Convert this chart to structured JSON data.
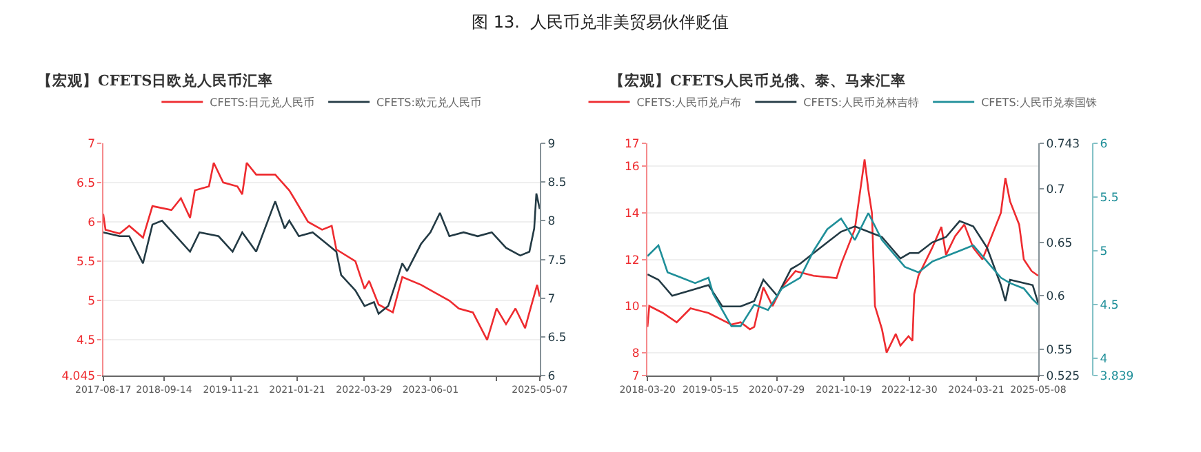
{
  "chart_data": [
    {
      "type": "line",
      "title": "【宏观】CFETS日欧兑人民币汇率",
      "annotations": [
        "图 13.  人民币兑非美贸易伙伴贬值"
      ],
      "legend": "top",
      "grid": "y",
      "xlim": [
        "2017-08-17",
        "2025-05-07"
      ],
      "xticks": [
        {
          "value": "2017-08-17",
          "label": "2017-08-17"
        },
        {
          "value": "2018-09-14",
          "label": "2018-09-14"
        },
        {
          "value": "2019-11-21",
          "label": "2019-11-21"
        },
        {
          "value": "2021-01-21",
          "label": "2021-01-21"
        },
        {
          "value": "2022-03-29",
          "label": "2022-03-29"
        },
        {
          "value": "2023-06-01",
          "label": "2023-06-01"
        },
        {
          "value": "2024-08-01",
          "label": null
        },
        {
          "value": "2025-05-07",
          "label": "2025-05-07"
        }
      ],
      "ylim": [
        4.045,
        7
      ],
      "yticks": [
        4.045,
        4.5,
        5,
        5.5,
        6,
        6.5,
        7
      ],
      "y2lim": [
        6,
        9
      ],
      "y2ticks": [
        6,
        6.5,
        7,
        7.5,
        8,
        8.5,
        9
      ],
      "series": [
        {
          "name": "CFETS:日元兑人民币",
          "color": "#ee2b2f",
          "x": [
            "2017-08-17",
            "2017-09",
            "2017-12",
            "2018-02",
            "2018-05",
            "2018-07",
            "2018-11",
            "2019-01",
            "2019-03",
            "2019-04",
            "2019-07",
            "2019-08",
            "2019-10",
            "2020-01",
            "2020-02",
            "2020-03",
            "2020-05",
            "2020-09",
            "2020-12",
            "2021-01",
            "2021-04",
            "2021-07",
            "2021-09",
            "2021-10",
            "2022-02",
            "2022-04",
            "2022-05",
            "2022-07",
            "2022-10",
            "2022-12",
            "2023-04",
            "2023-07",
            "2023-10",
            "2023-12",
            "2024-03",
            "2024-06",
            "2024-08",
            "2024-10",
            "2024-12",
            "2025-02",
            "2025-03",
            "2025-04-20",
            "2025-05-07"
          ],
          "values": [
            6.1,
            5.9,
            5.85,
            5.95,
            5.8,
            6.2,
            6.15,
            6.3,
            6.05,
            6.4,
            6.45,
            6.75,
            6.5,
            6.45,
            6.35,
            6.75,
            6.6,
            6.6,
            6.4,
            6.3,
            6.0,
            5.9,
            5.95,
            5.65,
            5.5,
            5.15,
            5.25,
            4.95,
            4.85,
            5.3,
            5.2,
            5.1,
            5.0,
            4.9,
            4.85,
            4.5,
            4.9,
            4.7,
            4.9,
            4.65,
            4.85,
            5.2,
            5.05
          ]
        },
        {
          "name": "CFETS:欧元兑人民币",
          "color": "#233a44",
          "axis": "y2",
          "x": [
            "2017-08-17",
            "2017-12",
            "2018-02",
            "2018-05",
            "2018-07",
            "2018-09",
            "2018-12",
            "2019-03",
            "2019-05",
            "2019-09",
            "2019-12",
            "2020-02",
            "2020-05",
            "2020-09",
            "2020-11",
            "2020-12",
            "2021-02",
            "2021-05",
            "2021-08",
            "2021-10",
            "2021-11",
            "2022-02",
            "2022-04",
            "2022-06",
            "2022-07",
            "2022-09",
            "2022-12",
            "2023-01",
            "2023-04",
            "2023-06",
            "2023-08",
            "2023-10",
            "2024-01",
            "2024-04",
            "2024-07",
            "2024-10",
            "2025-01",
            "2025-03",
            "2025-04-01",
            "2025-04-15",
            "2025-05-07"
          ],
          "values": [
            7.85,
            7.8,
            7.8,
            7.45,
            7.95,
            8.0,
            7.8,
            7.6,
            7.85,
            7.8,
            7.6,
            7.85,
            7.6,
            8.25,
            7.9,
            8.0,
            7.8,
            7.85,
            7.7,
            7.6,
            7.3,
            7.1,
            6.9,
            6.95,
            6.8,
            6.9,
            7.45,
            7.35,
            7.7,
            7.85,
            8.1,
            7.8,
            7.85,
            7.8,
            7.85,
            7.65,
            7.55,
            7.6,
            7.9,
            8.35,
            8.15
          ]
        }
      ]
    },
    {
      "type": "line",
      "title": "【宏观】CFETS人民币兑俄、泰、马来汇率",
      "legend": "top",
      "grid": "y",
      "xlim": [
        "2018-03-20",
        "2025-05-08"
      ],
      "xticks": [
        {
          "value": "2018-03-20",
          "label": "2018-03-20"
        },
        {
          "value": "2019-05-15",
          "label": "2019-05-15"
        },
        {
          "value": "2020-07-29",
          "label": "2020-07-29"
        },
        {
          "value": "2021-10-19",
          "label": "2021-10-19"
        },
        {
          "value": "2022-12-30",
          "label": "2022-12-30"
        },
        {
          "value": "2024-03-21",
          "label": "2024-03-21"
        },
        {
          "value": "2025-05-08",
          "label": "2025-05-08"
        }
      ],
      "ylim": [
        7,
        17
      ],
      "yticks": [
        7,
        8,
        10,
        12,
        14,
        16,
        17
      ],
      "y2lim": [
        0.525,
        0.743
      ],
      "y2ticks": [
        0.525,
        0.55,
        0.6,
        0.65,
        0.7,
        0.743
      ],
      "y3lim": [
        3.839,
        6
      ],
      "y3ticks": [
        3.839,
        4,
        4.5,
        5,
        5.5,
        6
      ],
      "series": [
        {
          "name": "CFETS:人民币兑卢布",
          "color": "#ee2b2f",
          "x": [
            "2018-03-20",
            "2018-04",
            "2018-07",
            "2018-10",
            "2019-01",
            "2019-05",
            "2019-10",
            "2019-12",
            "2020-02",
            "2020-03",
            "2020-05",
            "2020-07",
            "2020-09",
            "2020-12",
            "2021-04",
            "2021-09",
            "2021-10",
            "2022-01",
            "2022-03-07",
            "2022-04-01",
            "2022-04-25",
            "2022-05-15",
            "2022-07",
            "2022-08",
            "2022-10",
            "2022-11",
            "2022-12-25",
            "2023-01-20",
            "2023-02",
            "2023-03",
            "2023-06",
            "2023-08",
            "2023-09",
            "2023-11",
            "2024-01",
            "2024-03",
            "2024-05",
            "2024-09",
            "2024-10",
            "2024-11",
            "2025-01",
            "2025-02",
            "2025-03-25",
            "2025-05-08"
          ],
          "values": [
            9.1,
            10.0,
            9.7,
            9.3,
            9.9,
            9.7,
            9.2,
            9.3,
            9.0,
            9.1,
            10.8,
            10.0,
            10.8,
            11.5,
            11.3,
            11.2,
            11.8,
            13.3,
            16.3,
            15.0,
            14.0,
            10.0,
            9.0,
            8.0,
            8.8,
            8.3,
            8.7,
            8.5,
            10.5,
            11.3,
            12.5,
            13.4,
            12.2,
            13.0,
            13.5,
            12.5,
            12.0,
            14.0,
            15.5,
            14.5,
            13.5,
            12.0,
            11.5,
            11.3
          ]
        },
        {
          "name": "CFETS:人民币兑林吉特",
          "color": "#233a44",
          "axis": "y2",
          "x": [
            "2018-03-20",
            "2018-06",
            "2018-09",
            "2019-01",
            "2019-05",
            "2019-08",
            "2019-12",
            "2020-03",
            "2020-05",
            "2020-08",
            "2020-11",
            "2021-01",
            "2021-04",
            "2021-07",
            "2021-10",
            "2022-01",
            "2022-04",
            "2022-07",
            "2022-10",
            "2022-11",
            "2023-01",
            "2023-03",
            "2023-06",
            "2023-09",
            "2023-12",
            "2024-03",
            "2024-06",
            "2024-09",
            "2024-10",
            "2024-11",
            "2025-02",
            "2025-04",
            "2025-05-08"
          ],
          "values": [
            0.62,
            0.615,
            0.6,
            0.605,
            0.61,
            0.59,
            0.59,
            0.595,
            0.615,
            0.6,
            0.625,
            0.63,
            0.64,
            0.65,
            0.66,
            0.665,
            0.66,
            0.655,
            0.64,
            0.635,
            0.64,
            0.64,
            0.65,
            0.655,
            0.67,
            0.665,
            0.645,
            0.61,
            0.595,
            0.615,
            0.612,
            0.61,
            0.593
          ]
        },
        {
          "name": "CFETS:人民币兑泰国铢",
          "color": "#1f8f99",
          "axis": "y3",
          "x": [
            "2018-03-20",
            "2018-06",
            "2018-08",
            "2018-11",
            "2019-02",
            "2019-05",
            "2019-06",
            "2019-10",
            "2019-12",
            "2020-03",
            "2020-06",
            "2020-09",
            "2021-01",
            "2021-04",
            "2021-07",
            "2021-10",
            "2022-01",
            "2022-04",
            "2022-07",
            "2022-10",
            "2022-12",
            "2023-03",
            "2023-06",
            "2023-09",
            "2023-12",
            "2024-03",
            "2024-06",
            "2024-09",
            "2024-11",
            "2025-02",
            "2025-04",
            "2025-05-08"
          ],
          "values": [
            4.95,
            5.05,
            4.8,
            4.75,
            4.7,
            4.75,
            4.6,
            4.3,
            4.3,
            4.5,
            4.45,
            4.65,
            4.75,
            5.0,
            5.2,
            5.3,
            5.1,
            5.35,
            5.1,
            4.95,
            4.85,
            4.8,
            4.9,
            4.95,
            5.0,
            5.05,
            4.9,
            4.75,
            4.7,
            4.65,
            4.55,
            4.5
          ]
        }
      ]
    }
  ]
}
